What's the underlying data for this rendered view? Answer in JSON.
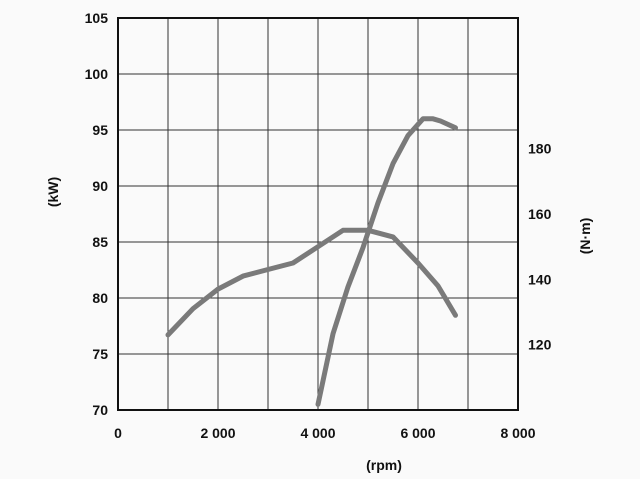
{
  "chart_data": {
    "type": "line",
    "xlabel": "(rpm)",
    "ylabel_left": "(kW)",
    "ylabel_right": "(N·m)",
    "xlim": [
      0,
      8000
    ],
    "ylim_left": [
      70,
      105
    ],
    "ylim_right": [
      100,
      220
    ],
    "x_ticks": [
      0,
      2000,
      4000,
      6000,
      8000
    ],
    "x_tick_labels": [
      "0",
      "2 000",
      "4 000",
      "6 000",
      "8 000"
    ],
    "y_left_ticks": [
      70,
      75,
      80,
      85,
      90,
      95,
      100,
      105
    ],
    "y_right_ticks": [
      120,
      140,
      160,
      180
    ],
    "grid": true,
    "line_color": "#7a7a7a",
    "series": [
      {
        "axis": "left",
        "x": [
          4000,
          4300,
          4600,
          4900,
          5200,
          5500,
          5800,
          6100,
          6300,
          6450,
          6750
        ],
        "values": [
          70.5,
          76.8,
          81.0,
          84.5,
          88.5,
          92.0,
          94.5,
          96.0,
          96.0,
          95.8,
          95.2
        ]
      },
      {
        "axis": "right",
        "x": [
          1000,
          1500,
          2000,
          2500,
          3000,
          3500,
          4000,
          4500,
          5000,
          5500,
          6000,
          6400,
          6750
        ],
        "values": [
          123,
          131,
          137,
          141,
          143,
          145,
          150,
          155,
          155,
          153,
          145,
          138,
          129
        ]
      }
    ]
  }
}
